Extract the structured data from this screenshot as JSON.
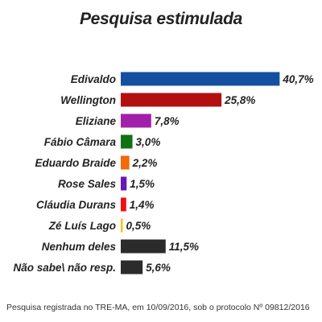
{
  "title": "Pesquisa estimulada",
  "footnote": "Pesquisa registrada no TRE-MA, em 10/09/2016, sob o protocolo Nº 09812/2016",
  "colors": {
    "text": "#222222",
    "bars": [
      "#1450a0",
      "#b40f0f",
      "#a21fa9",
      "#127212",
      "#f26a0a",
      "#6a16b8",
      "#ee1111",
      "#ffc000",
      "#2b2b2b",
      "#2b2b2b"
    ]
  },
  "chart_data": {
    "type": "bar",
    "orientation": "horizontal",
    "title": "Pesquisa estimulada",
    "categories": [
      "Edivaldo",
      "Wellington",
      "Eliziane",
      "Fábio Câmara",
      "Eduardo Braide",
      "Rose Sales",
      "Cláudia Durans",
      "Zé Luís Lago",
      "Nenhum deles",
      "Não sabe\\ não resp."
    ],
    "values": [
      40.7,
      25.8,
      7.8,
      3.0,
      2.2,
      1.5,
      1.4,
      0.5,
      11.5,
      5.6
    ],
    "value_labels": [
      "40,7%",
      "25,8%",
      "7,8%",
      "3,0%",
      "2,2%",
      "1,5%",
      "1,4%",
      "0,5%",
      "11,5%",
      "5,6%"
    ],
    "xlabel": "",
    "ylabel": "",
    "grid": false,
    "legend": "none"
  }
}
